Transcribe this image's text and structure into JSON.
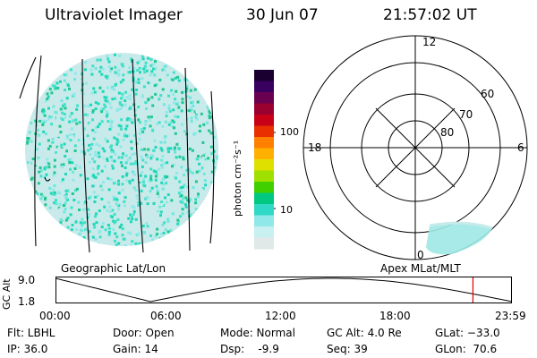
{
  "header": {
    "instrument": "Ultraviolet Imager",
    "date": "30 Jun 07",
    "time": "21:57:02 UT"
  },
  "colorbar": {
    "label": "photon cm⁻²s⁻¹",
    "ticks": [
      "100",
      "10"
    ],
    "colors": [
      "#1a0030",
      "#3a0060",
      "#6a0050",
      "#9a0030",
      "#c80018",
      "#e83000",
      "#ff8000",
      "#ffb000",
      "#e0e000",
      "#a0e000",
      "#40d000",
      "#00c880",
      "#30d8c8",
      "#90e8e8",
      "#c8f0f0",
      "#e0e8e8"
    ]
  },
  "polar": {
    "mlt_labels": [
      "12",
      "18",
      "6",
      "0"
    ],
    "lat_labels": [
      "60",
      "70",
      "80"
    ]
  },
  "timeline": {
    "left_label": "Geographic Lat/Lon",
    "right_label": "Apex MLat/MLT",
    "y_axis_label": "GC Alt",
    "y_ticks": [
      "9.0",
      "1.8"
    ],
    "x_ticks": [
      "00:00",
      "06:00",
      "12:00",
      "18:00",
      "23:59"
    ],
    "current_time_hours": 21.95,
    "marker_color": "#e00000"
  },
  "info": {
    "filter": "Flt: LBHL",
    "ip": "IP: 36.0",
    "door": "Door: Open",
    "gain": "Gain: 14",
    "mode": "Mode: Normal",
    "dsp": "Dsp:    -9.9",
    "gc_alt": "GC Alt: 4.0 Re",
    "seq": "Seq: 39",
    "glat": "GLat: −33.0",
    "glon": "GLon:  70.6"
  }
}
